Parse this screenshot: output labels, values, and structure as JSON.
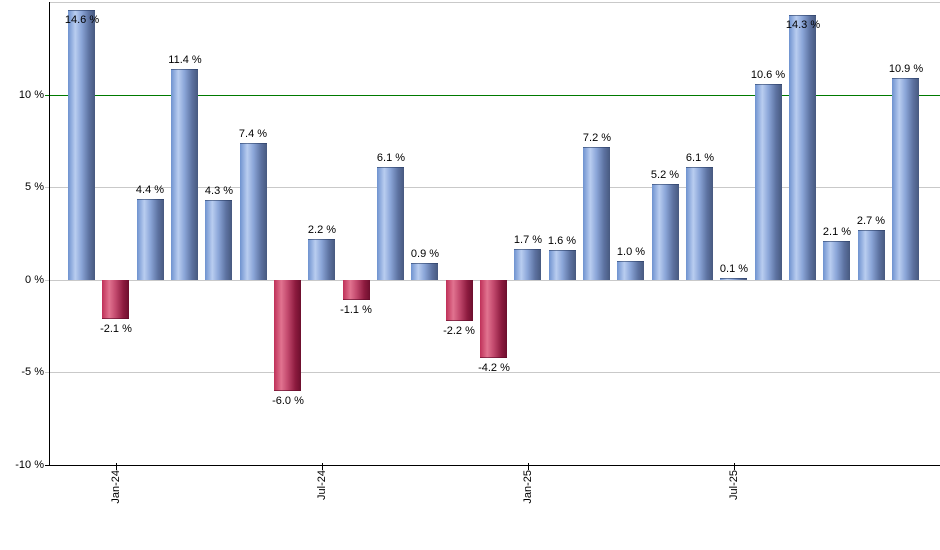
{
  "chart_data": {
    "type": "bar",
    "title": "",
    "description": "Monthly percentage returns bar chart, blue for positive months, red for negative months, green reference line at 10 %",
    "values": [
      14.6,
      -2.1,
      4.4,
      11.4,
      4.3,
      7.4,
      -6.0,
      2.2,
      -1.1,
      6.1,
      0.9,
      -2.2,
      -4.2,
      1.7,
      1.6,
      7.2,
      1.0,
      5.2,
      6.1,
      0.1,
      10.6,
      14.3,
      2.1,
      2.7,
      10.9
    ],
    "value_labels": [
      "14.6 %",
      "-2.1 %",
      "4.4 %",
      "11.4 %",
      "4.3 %",
      "7.4 %",
      "-6.0 %",
      "2.2 %",
      "-1.1 %",
      "6.1 %",
      "0.9 %",
      "-2.2 %",
      "-4.2 %",
      "1.7 %",
      "1.6 %",
      "7.2 %",
      "1.0 %",
      "5.2 %",
      "6.1 %",
      "0.1 %",
      "10.6 %",
      "14.3 %",
      "2.1 %",
      "2.7 %",
      "10.9 %"
    ],
    "x_axis": {
      "tick_labels": [
        "Jan-24",
        "Jul-24",
        "Jan-25",
        "Jul-25"
      ],
      "tick_bar_indices": [
        1,
        7,
        13,
        19
      ]
    },
    "y_axis": {
      "tick_labels": [
        "10 %",
        "5 %",
        "0 %",
        "-5 %",
        "-10 %"
      ],
      "tick_values": [
        10,
        5,
        0,
        -5,
        -10
      ],
      "min": -10,
      "max": 15,
      "plain_gridline_values": [
        15,
        5,
        0,
        -5
      ]
    },
    "reference_line": {
      "value": 10,
      "color": "#007a00"
    },
    "colors": {
      "background": "#ffffff",
      "gridline": "#c9c9c9",
      "axis": "#000000",
      "label_text": "#000000",
      "positive_bar_stops": [
        {
          "color": "#6e92cf",
          "pos": 0
        },
        {
          "color": "#b9cdf0",
          "pos": 27
        },
        {
          "color": "#8ba6d8",
          "pos": 50
        },
        {
          "color": "#5d72a1",
          "pos": 78
        },
        {
          "color": "#47597f",
          "pos": 100
        }
      ],
      "negative_bar_stops": [
        {
          "color": "#bf3058",
          "pos": 0
        },
        {
          "color": "#e17390",
          "pos": 27
        },
        {
          "color": "#c34a6e",
          "pos": 50
        },
        {
          "color": "#8f1c40",
          "pos": 78
        },
        {
          "color": "#6c0e2d",
          "pos": 100
        }
      ]
    }
  }
}
